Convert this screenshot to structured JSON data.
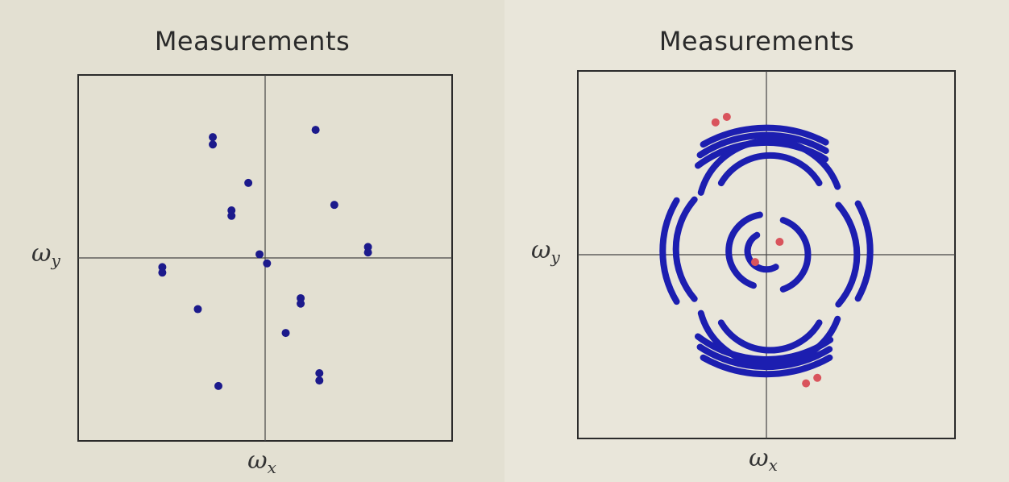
{
  "chart_data": [
    {
      "type": "scatter",
      "title": "Measurements",
      "xlabel": "ω_x",
      "ylabel": "ω_y",
      "xlim": [
        -1,
        1
      ],
      "ylim": [
        -1,
        1
      ],
      "grid": false,
      "series": [
        {
          "color": "#1c1a8c",
          "points": [
            [
              -0.28,
              0.66
            ],
            [
              -0.28,
              0.62
            ],
            [
              0.27,
              0.7
            ],
            [
              -0.09,
              0.41
            ],
            [
              -0.18,
              0.26
            ],
            [
              -0.18,
              0.23
            ],
            [
              0.37,
              0.29
            ],
            [
              0.55,
              0.06
            ],
            [
              0.55,
              0.03
            ],
            [
              -0.55,
              -0.05
            ],
            [
              -0.55,
              -0.08
            ],
            [
              -0.03,
              0.02
            ],
            [
              0.01,
              -0.03
            ],
            [
              0.19,
              -0.22
            ],
            [
              0.19,
              -0.25
            ],
            [
              -0.36,
              -0.28
            ],
            [
              0.11,
              -0.41
            ],
            [
              0.29,
              -0.63
            ],
            [
              0.29,
              -0.67
            ],
            [
              -0.25,
              -0.7
            ]
          ]
        }
      ],
      "labels": {
        "x": "ω",
        "x_sub": "x",
        "y": "ω",
        "y_sub": "y"
      }
    },
    {
      "type": "line",
      "title": "Measurements",
      "xlabel": "ω_x",
      "ylabel": "ω_y",
      "xlim": [
        -1,
        1
      ],
      "ylim": [
        -1,
        1
      ],
      "grid": false,
      "series": [
        {
          "color": "#1c1eb0",
          "arcs": [
            {
              "cx": 0,
              "cy": 0.02,
              "r": 0.67,
              "a0": 62,
              "a1": 120
            },
            {
              "cx": 0,
              "cy": 0.02,
              "r": 0.63,
              "a0": 60,
              "a1": 124
            },
            {
              "cx": 0,
              "cy": 0.02,
              "r": 0.59,
              "a0": 58,
              "a1": 128
            },
            {
              "cx": 0,
              "cy": 0.02,
              "r": 0.67,
              "a0": 240,
              "a1": 300
            },
            {
              "cx": 0,
              "cy": 0.02,
              "r": 0.63,
              "a0": 236,
              "a1": 302
            },
            {
              "cx": 0,
              "cy": 0.02,
              "r": 0.59,
              "a0": 232,
              "a1": 305
            },
            {
              "cx": 0,
              "cy": 0.02,
              "r": 0.55,
              "a0": 150,
              "a1": 210
            },
            {
              "cx": 0,
              "cy": 0.02,
              "r": 0.55,
              "a0": -28,
              "a1": 28
            },
            {
              "cx": 0.02,
              "cy": 0.24,
              "r": 0.38,
              "a0": 20,
              "a1": 165
            },
            {
              "cx": 0.02,
              "cy": 0.24,
              "r": 0.3,
              "a0": 30,
              "a1": 150
            },
            {
              "cx": 0.02,
              "cy": -0.22,
              "r": 0.38,
              "a0": 195,
              "a1": 340
            },
            {
              "cx": 0.02,
              "cy": -0.22,
              "r": 0.3,
              "a0": 210,
              "a1": 330
            },
            {
              "cx": -0.06,
              "cy": 0.03,
              "r": 0.42,
              "a0": 140,
              "a1": 220
            },
            {
              "cx": 0.06,
              "cy": 0.0,
              "r": 0.42,
              "a0": -40,
              "a1": 40
            },
            {
              "cx": 0.0,
              "cy": 0.02,
              "r": 0.2,
              "a0": 100,
              "a1": 250
            },
            {
              "cx": 0.02,
              "cy": 0.0,
              "r": 0.2,
              "a0": -70,
              "a1": 70
            },
            {
              "cx": 0.0,
              "cy": 0.02,
              "r": 0.1,
              "a0": 120,
              "a1": 300
            }
          ]
        },
        {
          "color": "#d9545c",
          "points": [
            [
              -0.27,
              0.72
            ],
            [
              -0.21,
              0.75
            ],
            [
              0.21,
              -0.7
            ],
            [
              0.27,
              -0.67
            ],
            [
              0.07,
              0.07
            ],
            [
              -0.06,
              -0.04
            ]
          ]
        }
      ],
      "labels": {
        "x": "ω",
        "x_sub": "x",
        "y": "ω",
        "y_sub": "y"
      }
    }
  ]
}
